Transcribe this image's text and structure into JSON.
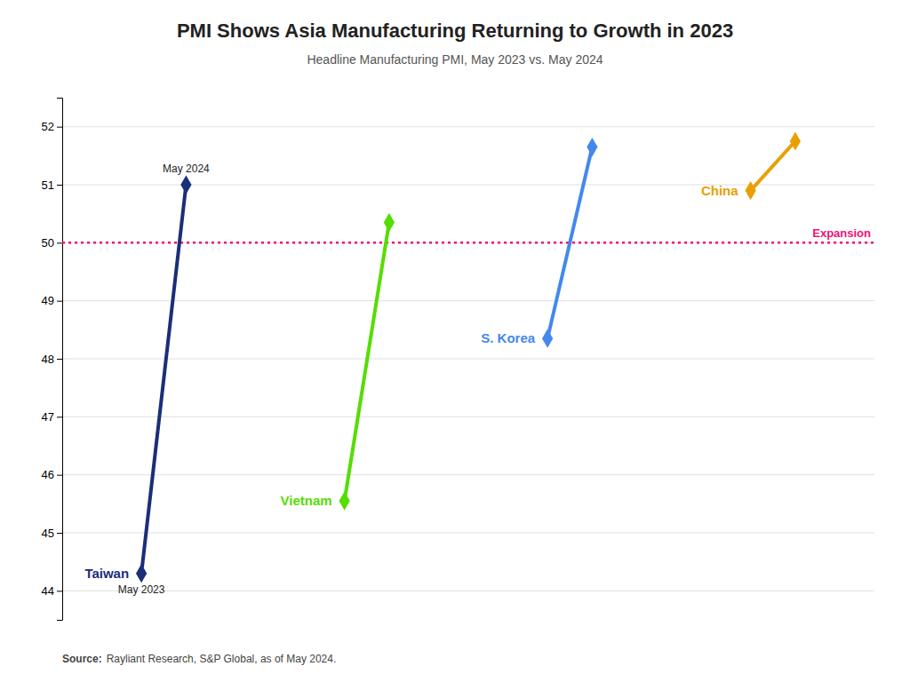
{
  "chart_data": {
    "type": "dumbbell",
    "title": "PMI Shows Asia Manufacturing Returning to Growth in 2023",
    "subtitle": "Headline Manufacturing PMI, May 2023 vs. May 2024",
    "categories": [
      "Taiwan",
      "Vietnam",
      "S. Korea",
      "China"
    ],
    "colors": [
      "#1a2e7a",
      "#55dd00",
      "#4488ee",
      "#e8a000"
    ],
    "series": [
      {
        "name": "May 2023",
        "values": [
          44.3,
          45.55,
          48.35,
          50.9
        ]
      },
      {
        "name": "May 2024",
        "values": [
          51.0,
          50.35,
          51.65,
          51.75
        ]
      }
    ],
    "reference_line": {
      "value": 50,
      "label": "Expansion",
      "color": "#ee1177"
    },
    "ylim": [
      43.5,
      52.5
    ],
    "yticks": [
      44,
      45,
      46,
      47,
      48,
      49,
      50,
      51,
      52
    ],
    "grid": true,
    "tick_labels": "y",
    "marker": "diamond",
    "source_label": "Source:",
    "source": "Rayliant Research, S&P Global, as of May 2024."
  }
}
